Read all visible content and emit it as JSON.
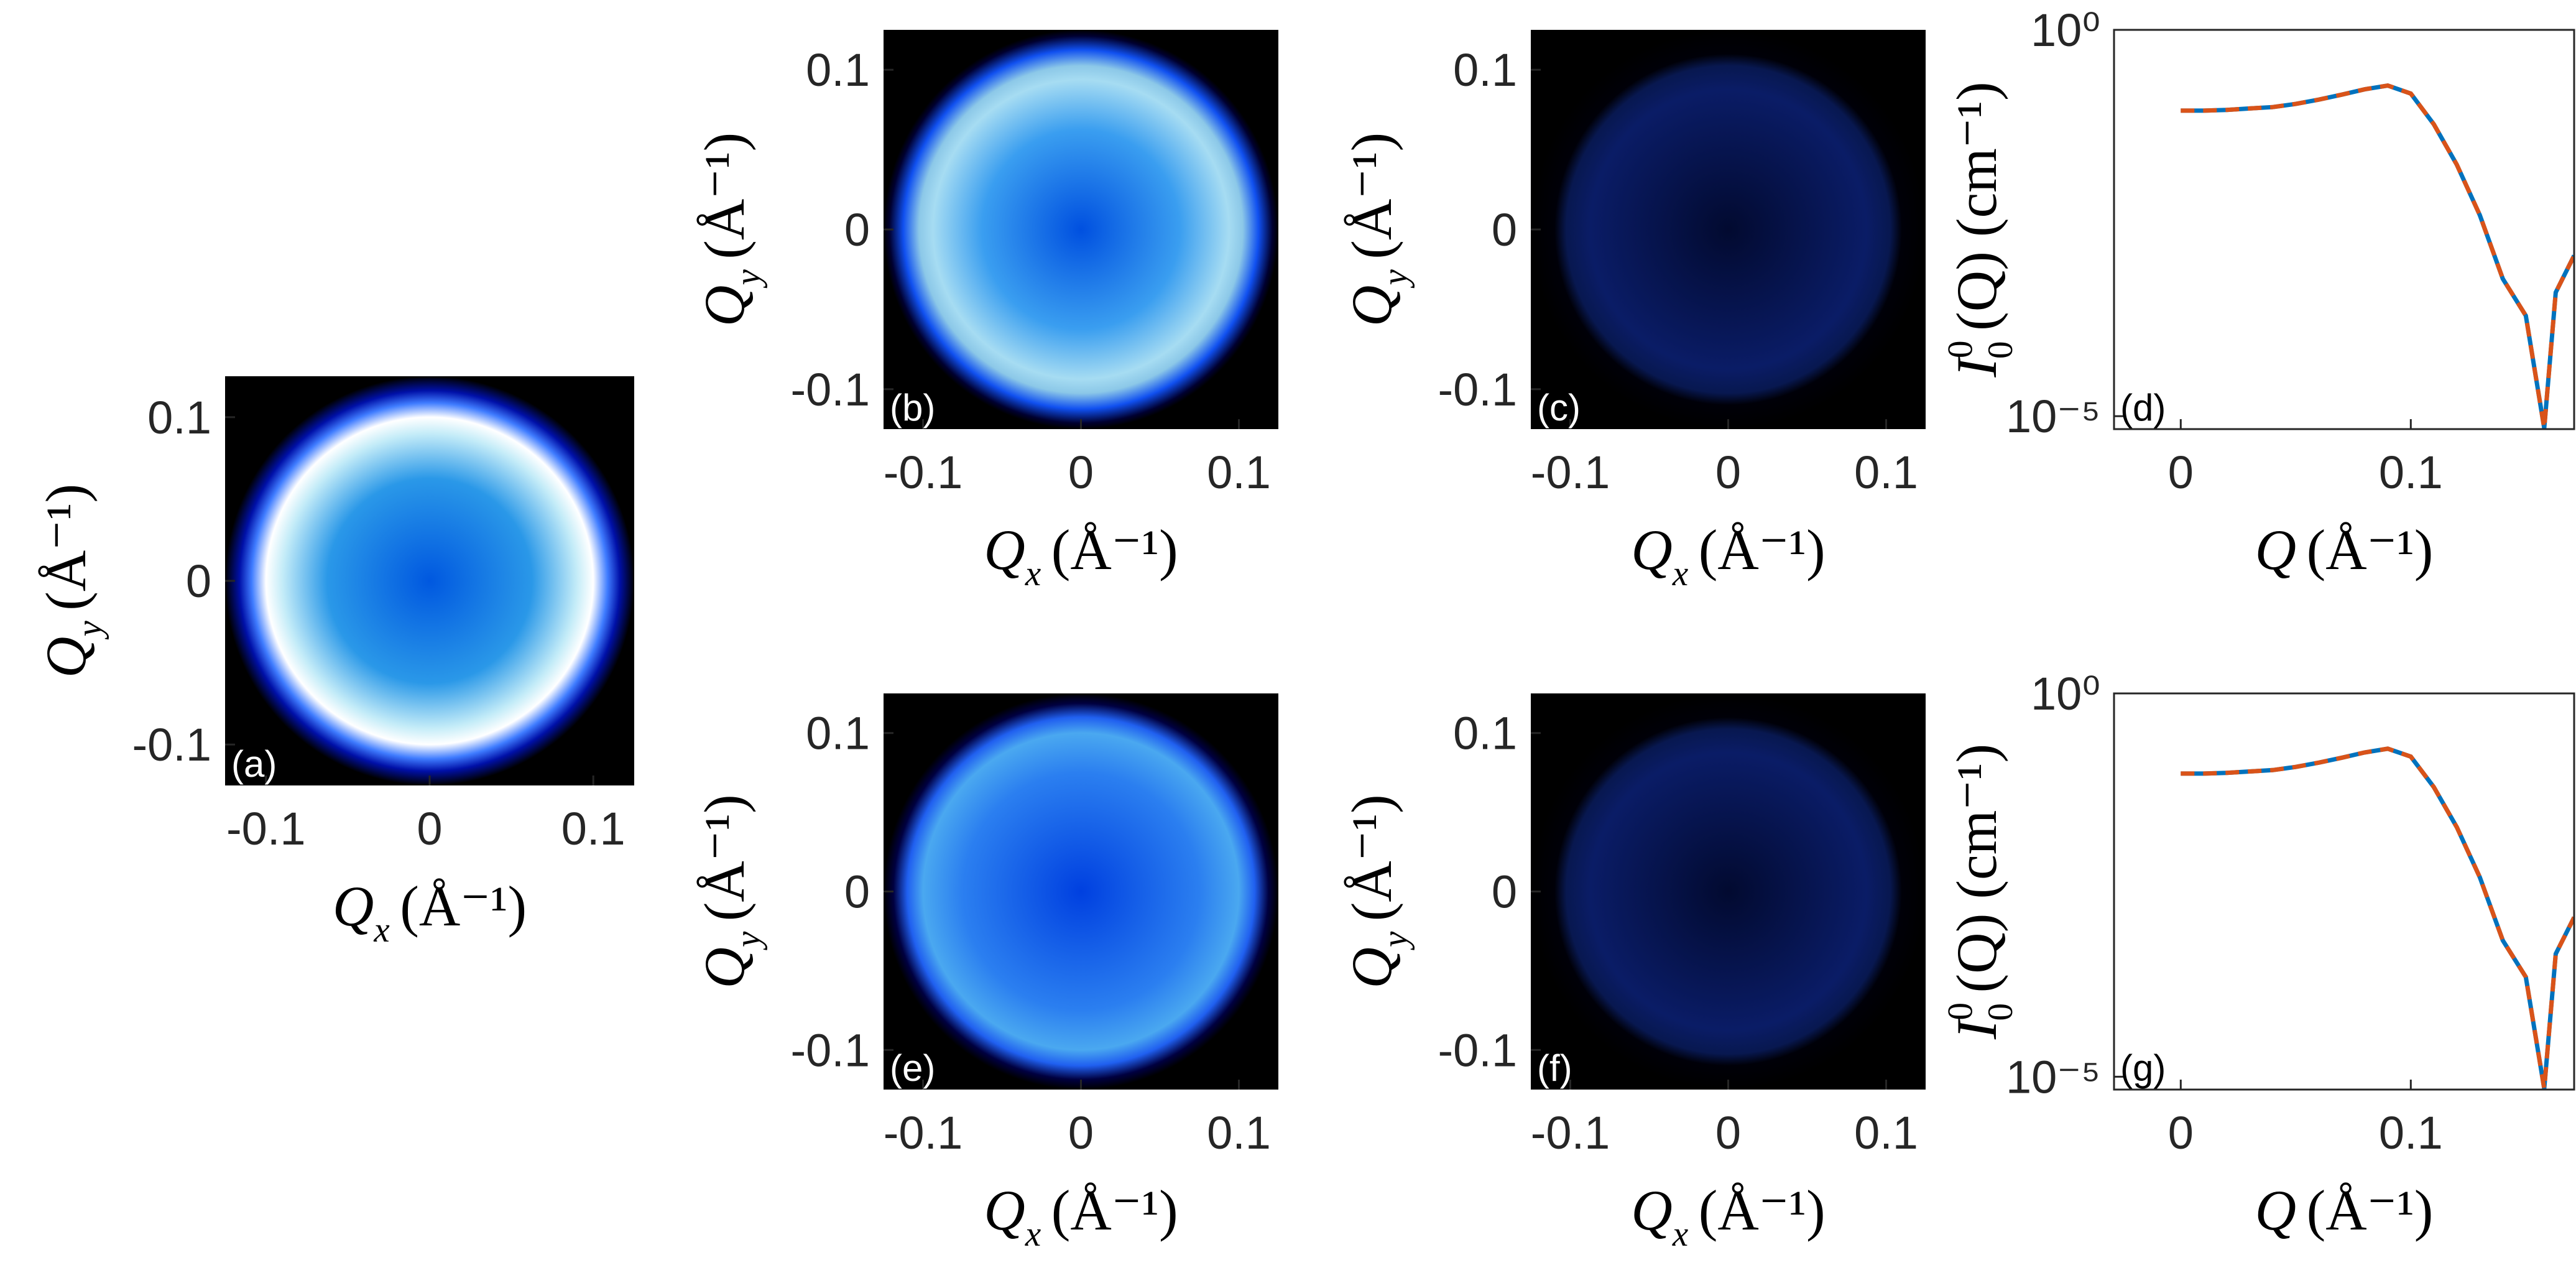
{
  "chart_data": [
    {
      "type": "heatmap",
      "panel_label": "(a)",
      "xlabel": {
        "symbol": "Q",
        "subscript": "x",
        "unit": "(Å⁻¹)"
      },
      "ylabel": {
        "symbol": "Q",
        "subscript": "y",
        "unit": "(Å⁻¹)"
      },
      "xlim": [
        -0.125,
        0.125
      ],
      "ylim": [
        -0.125,
        0.125
      ],
      "xticks": [
        -0.1,
        0,
        0.1
      ],
      "yticks": [
        -0.1,
        0,
        0.1
      ]
    },
    {
      "type": "heatmap",
      "panel_label": "(b)",
      "xlabel": {
        "symbol": "Q",
        "subscript": "x",
        "unit": "(Å⁻¹)"
      },
      "ylabel": {
        "symbol": "Q",
        "subscript": "y",
        "unit": "(Å⁻¹)"
      },
      "xlim": [
        -0.125,
        0.125
      ],
      "ylim": [
        -0.125,
        0.125
      ],
      "xticks": [
        -0.1,
        0,
        0.1
      ],
      "yticks": [
        -0.1,
        0,
        0.1
      ]
    },
    {
      "type": "heatmap",
      "panel_label": "(c)",
      "xlabel": {
        "symbol": "Q",
        "subscript": "x",
        "unit": "(Å⁻¹)"
      },
      "ylabel": {
        "symbol": "Q",
        "subscript": "y",
        "unit": "(Å⁻¹)"
      },
      "xlim": [
        -0.125,
        0.125
      ],
      "ylim": [
        -0.125,
        0.125
      ],
      "xticks": [
        -0.1,
        0,
        0.1
      ],
      "yticks": [
        -0.1,
        0,
        0.1
      ]
    },
    {
      "type": "line",
      "panel_label": "(d)",
      "xlabel": {
        "symbol": "Q",
        "unit": "(Å⁻¹)"
      },
      "ylabel": {
        "symbol": "I",
        "superscript": "0",
        "subscript": "0",
        "unit": "(Q) (cm⁻¹)"
      },
      "x": [
        0,
        0.01,
        0.02,
        0.03,
        0.04,
        0.05,
        0.06,
        0.07,
        0.08,
        0.09,
        0.1,
        0.11,
        0.12,
        0.13,
        0.14,
        0.15,
        0.158,
        0.163,
        0.171
      ],
      "series": [
        {
          "color": "#0072bd",
          "line_style": "solid",
          "values": [
            0.09,
            0.09,
            0.092,
            0.096,
            0.1,
            0.11,
            0.125,
            0.145,
            0.17,
            0.19,
            0.15,
            0.06,
            0.018,
            0.004,
            0.0006,
            0.0002,
            7e-06,
            0.0004,
            0.0012
          ]
        },
        {
          "color": "#d95319",
          "line_style": "dashed",
          "values": [
            0.09,
            0.09,
            0.092,
            0.096,
            0.1,
            0.11,
            0.125,
            0.145,
            0.17,
            0.19,
            0.15,
            0.06,
            0.018,
            0.004,
            0.0006,
            0.0002,
            7e-06,
            0.0004,
            0.0012
          ]
        }
      ],
      "xlim": [
        -0.029,
        0.171
      ],
      "ylim": [
        6.8e-06,
        1
      ],
      "log_y": true,
      "xticks": [
        0,
        0.1
      ],
      "yticks": [
        {
          "value": 1,
          "label": "10⁰"
        },
        {
          "value": 1e-05,
          "label": "10⁻⁵"
        }
      ]
    },
    {
      "type": "heatmap",
      "panel_label": "(e)",
      "xlabel": {
        "symbol": "Q",
        "subscript": "x",
        "unit": "(Å⁻¹)"
      },
      "ylabel": {
        "symbol": "Q",
        "subscript": "y",
        "unit": "(Å⁻¹)"
      },
      "xlim": [
        -0.125,
        0.125
      ],
      "ylim": [
        -0.125,
        0.125
      ],
      "xticks": [
        -0.1,
        0,
        0.1
      ],
      "yticks": [
        -0.1,
        0,
        0.1
      ]
    },
    {
      "type": "heatmap",
      "panel_label": "(f)",
      "xlabel": {
        "symbol": "Q",
        "subscript": "x",
        "unit": "(Å⁻¹)"
      },
      "ylabel": {
        "symbol": "Q",
        "subscript": "y",
        "unit": "(Å⁻¹)"
      },
      "xlim": [
        -0.125,
        0.125
      ],
      "ylim": [
        -0.125,
        0.125
      ],
      "xticks": [
        -0.1,
        0,
        0.1
      ],
      "yticks": [
        -0.1,
        0,
        0.1
      ]
    },
    {
      "type": "line",
      "panel_label": "(g)",
      "xlabel": {
        "symbol": "Q",
        "unit": "(Å⁻¹)"
      },
      "ylabel": {
        "symbol": "I",
        "superscript": "0",
        "subscript": "0",
        "unit": "(Q) (cm⁻¹)"
      },
      "x": [
        0,
        0.01,
        0.02,
        0.03,
        0.04,
        0.05,
        0.06,
        0.07,
        0.08,
        0.09,
        0.1,
        0.11,
        0.12,
        0.13,
        0.14,
        0.15,
        0.158,
        0.163,
        0.171
      ],
      "series": [
        {
          "color": "#0072bd",
          "line_style": "solid",
          "values": [
            0.09,
            0.09,
            0.092,
            0.096,
            0.1,
            0.11,
            0.125,
            0.145,
            0.17,
            0.19,
            0.15,
            0.06,
            0.018,
            0.004,
            0.0006,
            0.0002,
            7e-06,
            0.0004,
            0.0012
          ]
        },
        {
          "color": "#d95319",
          "line_style": "dashed",
          "values": [
            0.09,
            0.09,
            0.092,
            0.096,
            0.1,
            0.11,
            0.125,
            0.145,
            0.17,
            0.19,
            0.15,
            0.06,
            0.018,
            0.004,
            0.0006,
            0.0002,
            7e-06,
            0.0004,
            0.0012
          ]
        }
      ],
      "xlim": [
        -0.029,
        0.171
      ],
      "ylim": [
        6.8e-06,
        1
      ],
      "log_y": true,
      "xticks": [
        0,
        0.1
      ],
      "yticks": [
        {
          "value": 1,
          "label": "10⁰"
        },
        {
          "value": 1e-05,
          "label": "10⁻⁵"
        }
      ]
    }
  ]
}
